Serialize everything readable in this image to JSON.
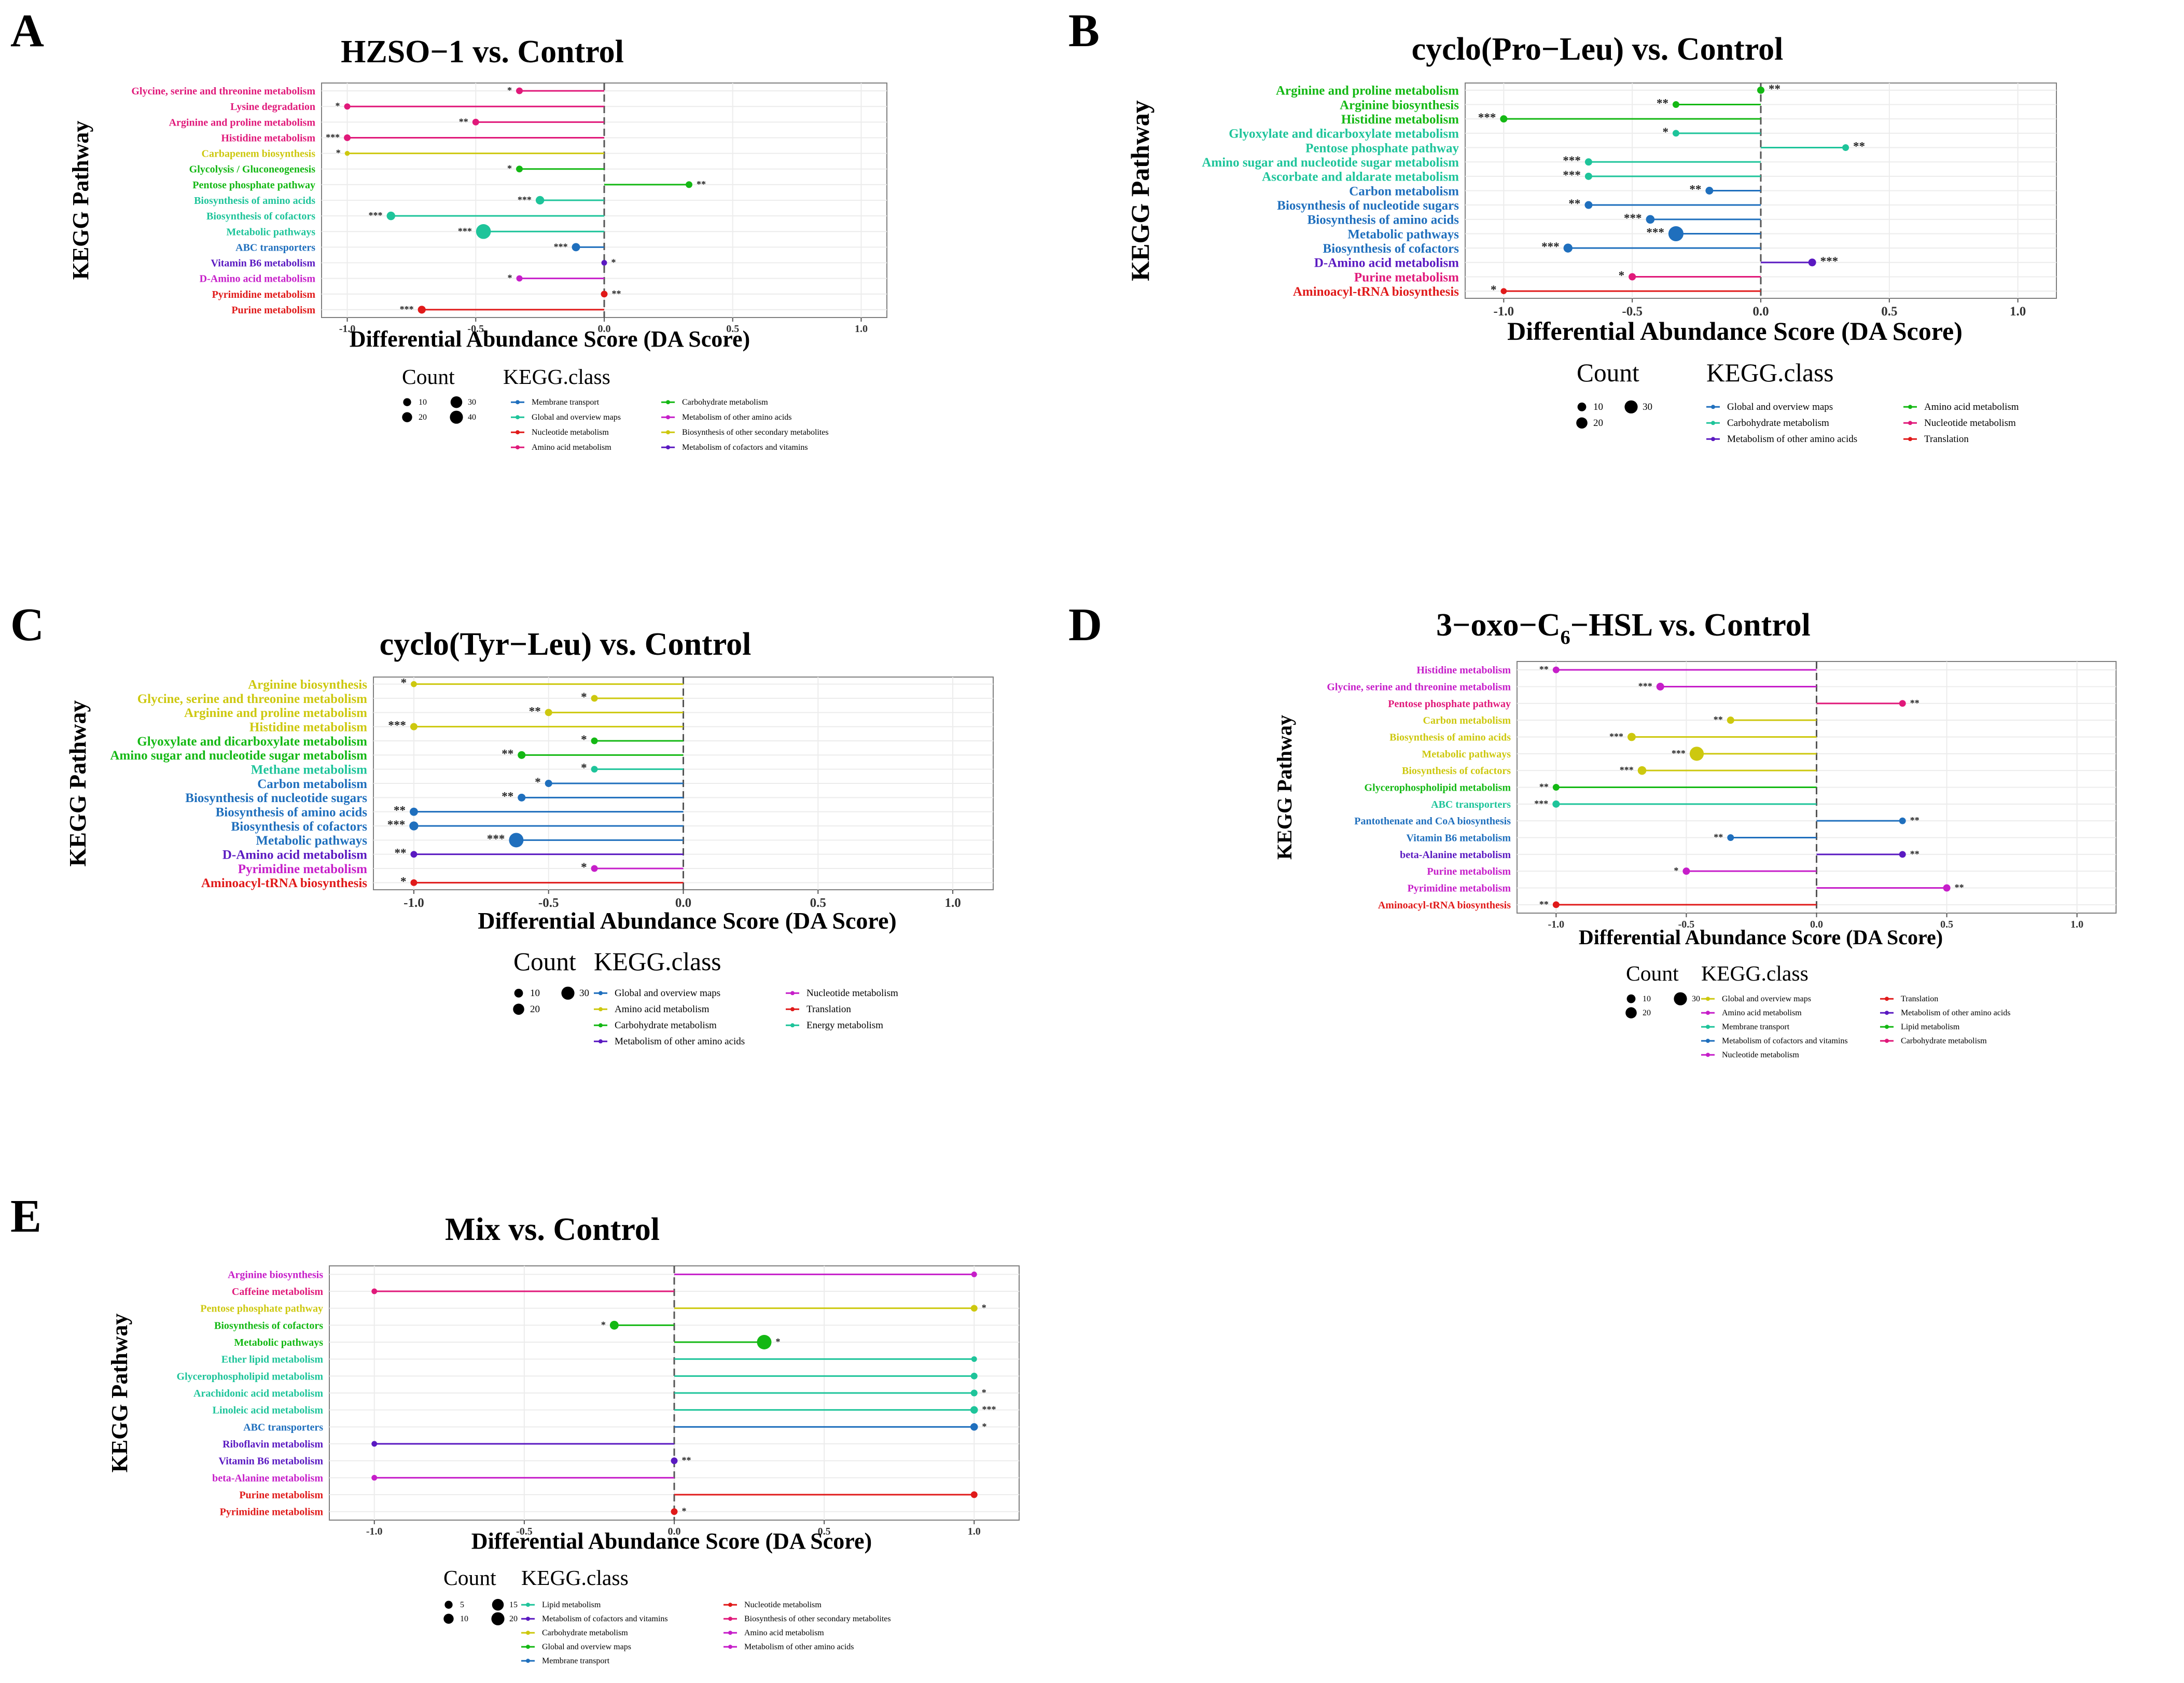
{
  "figure": {
    "panel_letters": [
      "A",
      "B",
      "C",
      "D",
      "E"
    ],
    "axis_title_y": "KEGG Pathway",
    "axis_title_x": "Differential Abundance Score (DA Score)",
    "legend_count_title": "Count",
    "legend_class_title": "KEGG.class"
  },
  "class_colors": {
    "Membrane transport": "#1f6fbd",
    "Global and overview maps": "#1f6fbd",
    "Nucleotide metabolism": "#e0197a",
    "Amino acid metabolism": "#e0197a",
    "Carbohydrate metabolism": "#14b814",
    "Metabolism of other amino acids": "#c61ec9",
    "Biosynthesis of other secondary metabolites": "#cdc80f",
    "Metabolism of cofactors and vitamins": "#5a19c1",
    "Translation": "#e01a1a",
    "Energy metabolism": "#1ec49a",
    "Lipid metabolism": "#1ec49a"
  },
  "chart_data": [
    {
      "panel": "A",
      "type": "lollipop",
      "title": "HZSO−1 vs. Control",
      "xlabel": "Differential Abundance Score (DA Score)",
      "ylabel": "KEGG Pathway",
      "xlim": [
        -1.1,
        1.1
      ],
      "xticks": [
        "-1.0",
        "-0.5",
        "0.0",
        "0.5",
        "1.0"
      ],
      "xtick_values": [
        -1.0,
        -0.5,
        0.0,
        0.5,
        1.0
      ],
      "count_legend": {
        "labels": [
          "10",
          "20",
          "30",
          "40"
        ],
        "values": [
          10,
          20,
          30,
          40
        ]
      },
      "class_legend": [
        "Membrane transport",
        "Global and overview maps",
        "Nucleotide metabolism",
        "Amino acid metabolism",
        "Carbohydrate metabolism",
        "Metabolism of other amino acids",
        "Biosynthesis of other secondary metabolites",
        "Metabolism of cofactors and vitamins"
      ],
      "class_legend_colors": [
        "#1f6fbd",
        "#1ec49a",
        "#e01a1a",
        "#e0197a",
        "#14b814",
        "#c61ec9",
        "#cdc80f",
        "#5a19c1"
      ],
      "pathways": [
        {
          "name": "Glycine, serine and threonine metabolism",
          "value": -0.33,
          "count": 4,
          "sig": "*",
          "color": "#e0197a"
        },
        {
          "name": "Lysine degradation",
          "value": -1.0,
          "count": 3,
          "sig": "*",
          "color": "#e0197a"
        },
        {
          "name": "Arginine and proline metabolism",
          "value": -0.5,
          "count": 4,
          "sig": "**",
          "color": "#e0197a"
        },
        {
          "name": "Histidine metabolism",
          "value": -1.0,
          "count": 4,
          "sig": "***",
          "color": "#e0197a"
        },
        {
          "name": "Carbapenem biosynthesis",
          "value": -1.0,
          "count": 1,
          "sig": "*",
          "color": "#cdc80f"
        },
        {
          "name": "Glycolysis / Gluconeogenesis",
          "value": -0.33,
          "count": 4,
          "sig": "*",
          "color": "#14b814"
        },
        {
          "name": "Pentose phosphate pathway",
          "value": 0.33,
          "count": 4,
          "sig": "**",
          "color": "#14b814"
        },
        {
          "name": "Biosynthesis of amino acids",
          "value": -0.25,
          "count": 9,
          "sig": "***",
          "color": "#1ec49a"
        },
        {
          "name": "Biosynthesis of cofactors",
          "value": -0.83,
          "count": 9,
          "sig": "***",
          "color": "#1ec49a"
        },
        {
          "name": "Metabolic pathways",
          "value": -0.47,
          "count": 42,
          "sig": "***",
          "color": "#1ec49a"
        },
        {
          "name": "ABC transporters",
          "value": -0.11,
          "count": 8,
          "sig": "***",
          "color": "#1f6fbd"
        },
        {
          "name": "Vitamin B6 metabolism",
          "value": 0.0,
          "count": 2,
          "sig": "*",
          "color": "#5a19c1"
        },
        {
          "name": "D-Amino acid metabolism",
          "value": -0.33,
          "count": 3,
          "sig": "*",
          "color": "#c61ec9"
        },
        {
          "name": "Pyrimidine metabolism",
          "value": 0.0,
          "count": 4,
          "sig": "**",
          "color": "#e01a1a"
        },
        {
          "name": "Purine metabolism",
          "value": -0.71,
          "count": 7,
          "sig": "***",
          "color": "#e01a1a"
        }
      ]
    },
    {
      "panel": "B",
      "type": "lollipop",
      "title": "cyclo(Pro−Leu) vs. Control",
      "xlabel": "Differential Abundance Score (DA Score)",
      "ylabel": "KEGG Pathway",
      "xlim": [
        -1.15,
        1.15
      ],
      "xticks": [
        "-1.0",
        "-0.5",
        "0.0",
        "0.5",
        "1.0"
      ],
      "xtick_values": [
        -1.0,
        -0.5,
        0.0,
        0.5,
        1.0
      ],
      "count_legend": {
        "labels": [
          "10",
          "20",
          "30"
        ],
        "values": [
          10,
          20,
          30
        ]
      },
      "class_legend": [
        "Global and overview maps",
        "Carbohydrate metabolism",
        "Metabolism of other amino acids",
        "Amino acid metabolism",
        "Nucleotide metabolism",
        "Translation"
      ],
      "class_legend_colors": [
        "#1f6fbd",
        "#1ec49a",
        "#5a19c1",
        "#14b814",
        "#e0197a",
        "#e01a1a"
      ],
      "pathways": [
        {
          "name": "Arginine and proline metabolism",
          "value": 0.0,
          "count": 4,
          "sig": "**",
          "color": "#14b814"
        },
        {
          "name": "Arginine biosynthesis",
          "value": -0.33,
          "count": 3,
          "sig": "**",
          "color": "#14b814"
        },
        {
          "name": "Histidine metabolism",
          "value": -1.0,
          "count": 4,
          "sig": "***",
          "color": "#14b814"
        },
        {
          "name": "Glyoxylate and dicarboxylate metabolism",
          "value": -0.33,
          "count": 3,
          "sig": "*",
          "color": "#1ec49a"
        },
        {
          "name": "Pentose phosphate pathway",
          "value": 0.33,
          "count": 3,
          "sig": "**",
          "color": "#1ec49a"
        },
        {
          "name": "Amino sugar and nucleotide sugar metabolism",
          "value": -0.67,
          "count": 4,
          "sig": "***",
          "color": "#1ec49a"
        },
        {
          "name": "Ascorbate and aldarate metabolism",
          "value": -0.67,
          "count": 4,
          "sig": "***",
          "color": "#1ec49a"
        },
        {
          "name": "Carbon metabolism",
          "value": -0.2,
          "count": 5,
          "sig": "**",
          "color": "#1f6fbd"
        },
        {
          "name": "Biosynthesis of nucleotide sugars",
          "value": -0.67,
          "count": 5,
          "sig": "**",
          "color": "#1f6fbd"
        },
        {
          "name": "Biosynthesis of amino acids",
          "value": -0.43,
          "count": 7,
          "sig": "***",
          "color": "#1f6fbd"
        },
        {
          "name": "Metabolic pathways",
          "value": -0.33,
          "count": 33,
          "sig": "***",
          "color": "#1f6fbd"
        },
        {
          "name": "Biosynthesis of cofactors",
          "value": -0.75,
          "count": 8,
          "sig": "***",
          "color": "#1f6fbd"
        },
        {
          "name": "D-Amino acid metabolism",
          "value": 0.2,
          "count": 5,
          "sig": "***",
          "color": "#5a19c1"
        },
        {
          "name": "Purine metabolism",
          "value": -0.5,
          "count": 4,
          "sig": "*",
          "color": "#e0197a"
        },
        {
          "name": "Aminoacyl-tRNA biosynthesis",
          "value": -1.0,
          "count": 2,
          "sig": "*",
          "color": "#e01a1a"
        }
      ]
    },
    {
      "panel": "C",
      "type": "lollipop",
      "title": "cyclo(Tyr−Leu) vs. Control",
      "xlabel": "Differential Abundance Score (DA Score)",
      "ylabel": "KEGG Pathway",
      "xlim": [
        -1.15,
        1.15
      ],
      "xticks": [
        "-1.0",
        "-0.5",
        "0.0",
        "0.5",
        "1.0"
      ],
      "xtick_values": [
        -1.0,
        -0.5,
        0.0,
        0.5,
        1.0
      ],
      "count_legend": {
        "labels": [
          "10",
          "20",
          "30"
        ],
        "values": [
          10,
          20,
          30
        ]
      },
      "class_legend": [
        "Global and overview maps",
        "Amino acid metabolism",
        "Carbohydrate metabolism",
        "Metabolism of other amino acids",
        "Nucleotide metabolism",
        "Translation",
        "Energy metabolism"
      ],
      "class_legend_colors": [
        "#1f6fbd",
        "#cdc80f",
        "#14b814",
        "#5a19c1",
        "#c61ec9",
        "#e01a1a",
        "#1ec49a"
      ],
      "pathways": [
        {
          "name": "Arginine biosynthesis",
          "value": -1.0,
          "count": 2,
          "sig": "*",
          "color": "#cdc80f"
        },
        {
          "name": "Glycine, serine and threonine metabolism",
          "value": -0.33,
          "count": 3,
          "sig": "*",
          "color": "#cdc80f"
        },
        {
          "name": "Arginine and proline metabolism",
          "value": -0.5,
          "count": 4,
          "sig": "**",
          "color": "#cdc80f"
        },
        {
          "name": "Histidine metabolism",
          "value": -1.0,
          "count": 4,
          "sig": "***",
          "color": "#cdc80f"
        },
        {
          "name": "Glyoxylate and dicarboxylate metabolism",
          "value": -0.33,
          "count": 3,
          "sig": "*",
          "color": "#14b814"
        },
        {
          "name": "Amino sugar and nucleotide sugar metabolism",
          "value": -0.6,
          "count": 5,
          "sig": "**",
          "color": "#14b814"
        },
        {
          "name": "Methane metabolism",
          "value": -0.33,
          "count": 3,
          "sig": "*",
          "color": "#1ec49a"
        },
        {
          "name": "Carbon metabolism",
          "value": -0.5,
          "count": 4,
          "sig": "*",
          "color": "#1f6fbd"
        },
        {
          "name": "Biosynthesis of nucleotide sugars",
          "value": -0.6,
          "count": 5,
          "sig": "**",
          "color": "#1f6fbd"
        },
        {
          "name": "Biosynthesis of amino acids",
          "value": -1.0,
          "count": 6,
          "sig": "**",
          "color": "#1f6fbd"
        },
        {
          "name": "Biosynthesis of cofactors",
          "value": -1.0,
          "count": 8,
          "sig": "***",
          "color": "#1f6fbd"
        },
        {
          "name": "Metabolic pathways",
          "value": -0.62,
          "count": 30,
          "sig": "***",
          "color": "#1f6fbd"
        },
        {
          "name": "D-Amino acid metabolism",
          "value": -1.0,
          "count": 3,
          "sig": "**",
          "color": "#5a19c1"
        },
        {
          "name": "Pyrimidine metabolism",
          "value": -0.33,
          "count": 3,
          "sig": "*",
          "color": "#c61ec9"
        },
        {
          "name": "Aminoacyl-tRNA biosynthesis",
          "value": -1.0,
          "count": 3,
          "sig": "*",
          "color": "#e01a1a"
        }
      ]
    },
    {
      "panel": "D",
      "type": "lollipop",
      "title": "3−oxo−C6−HSL vs. Control",
      "title_parts": {
        "a": "3−oxo−C",
        "sub": "6",
        "b": "−HSL vs. Control"
      },
      "xlabel": "Differential Abundance Score (DA Score)",
      "ylabel": "KEGG Pathway",
      "xlim": [
        -1.15,
        1.15
      ],
      "xticks": [
        "-1.0",
        "-0.5",
        "0.0",
        "0.5",
        "1.0"
      ],
      "xtick_values": [
        -1.0,
        -0.5,
        0.0,
        0.5,
        1.0
      ],
      "count_legend": {
        "labels": [
          "10",
          "20",
          "30"
        ],
        "values": [
          10,
          20,
          30
        ]
      },
      "class_legend": [
        "Global and overview maps",
        "Amino acid metabolism",
        "Membrane transport",
        "Metabolism of cofactors and vitamins",
        "Nucleotide metabolism",
        "Translation",
        "Metabolism of other amino acids",
        "Lipid metabolism",
        "Carbohydrate metabolism"
      ],
      "class_legend_colors": [
        "#cdc80f",
        "#c61ec9",
        "#1ec49a",
        "#1f6fbd",
        "#c61ec9",
        "#e01a1a",
        "#5a19c1",
        "#14b814",
        "#e0197a"
      ],
      "pathways": [
        {
          "name": "Histidine metabolism",
          "value": -1.0,
          "count": 3,
          "sig": "**",
          "color": "#c61ec9"
        },
        {
          "name": "Glycine, serine and threonine metabolism",
          "value": -0.6,
          "count": 5,
          "sig": "***",
          "color": "#c61ec9"
        },
        {
          "name": "Pentose phosphate pathway",
          "value": 0.33,
          "count": 3,
          "sig": "**",
          "color": "#e0197a"
        },
        {
          "name": "Carbon metabolism",
          "value": -0.33,
          "count": 4,
          "sig": "**",
          "color": "#cdc80f"
        },
        {
          "name": "Biosynthesis of amino acids",
          "value": -0.71,
          "count": 6,
          "sig": "***",
          "color": "#cdc80f"
        },
        {
          "name": "Metabolic pathways",
          "value": -0.46,
          "count": 28,
          "sig": "***",
          "color": "#cdc80f"
        },
        {
          "name": "Biosynthesis of cofactors",
          "value": -0.67,
          "count": 7,
          "sig": "***",
          "color": "#cdc80f"
        },
        {
          "name": "Glycerophospholipid metabolism",
          "value": -1.0,
          "count": 3,
          "sig": "**",
          "color": "#14b814"
        },
        {
          "name": "ABC transporters",
          "value": -1.0,
          "count": 4,
          "sig": "***",
          "color": "#1ec49a"
        },
        {
          "name": "Pantothenate and CoA biosynthesis",
          "value": 0.33,
          "count": 3,
          "sig": "**",
          "color": "#1f6fbd"
        },
        {
          "name": "Vitamin B6 metabolism",
          "value": -0.33,
          "count": 3,
          "sig": "**",
          "color": "#1f6fbd"
        },
        {
          "name": "beta-Alanine metabolism",
          "value": 0.33,
          "count": 3,
          "sig": "**",
          "color": "#5a19c1"
        },
        {
          "name": "Purine metabolism",
          "value": -0.5,
          "count": 4,
          "sig": "*",
          "color": "#c61ec9"
        },
        {
          "name": "Pyrimidine metabolism",
          "value": 0.5,
          "count": 4,
          "sig": "**",
          "color": "#c61ec9"
        },
        {
          "name": "Aminoacyl-tRNA biosynthesis",
          "value": -1.0,
          "count": 3,
          "sig": "**",
          "color": "#e01a1a"
        }
      ]
    },
    {
      "panel": "E",
      "type": "lollipop",
      "title": "Mix vs. Control",
      "xlabel": "Differential Abundance Score (DA Score)",
      "ylabel": "KEGG Pathway",
      "xlim": [
        -1.15,
        1.15
      ],
      "xticks": [
        "-1.0",
        "-0.5",
        "0.0",
        "0.5",
        "1.0"
      ],
      "xtick_values": [
        -1.0,
        -0.5,
        0.0,
        0.5,
        1.0
      ],
      "count_legend": {
        "labels": [
          "5",
          "10",
          "15",
          "20"
        ],
        "values": [
          5,
          10,
          15,
          20
        ]
      },
      "class_legend": [
        "Lipid metabolism",
        "Metabolism of cofactors and vitamins",
        "Carbohydrate metabolism",
        "Global and overview maps",
        "Membrane transport",
        "Nucleotide metabolism",
        "Biosynthesis of other secondary metabolites",
        "Amino acid metabolism",
        "Metabolism of other amino acids"
      ],
      "class_legend_colors": [
        "#1ec49a",
        "#5a19c1",
        "#cdc80f",
        "#14b814",
        "#1f6fbd",
        "#e01a1a",
        "#e0197a",
        "#c61ec9",
        "#c61ec9"
      ],
      "pathways": [
        {
          "name": "Arginine biosynthesis",
          "value": 1.0,
          "count": 1,
          "sig": "",
          "color": "#c61ec9"
        },
        {
          "name": "Caffeine metabolism",
          "value": -1.0,
          "count": 1,
          "sig": "",
          "color": "#e0197a"
        },
        {
          "name": "Pentose phosphate pathway",
          "value": 1.0,
          "count": 2,
          "sig": "*",
          "color": "#cdc80f"
        },
        {
          "name": "Biosynthesis of cofactors",
          "value": -0.2,
          "count": 5,
          "sig": "*",
          "color": "#14b814"
        },
        {
          "name": "Metabolic pathways",
          "value": 0.3,
          "count": 20,
          "sig": "*",
          "color": "#14b814"
        },
        {
          "name": "Ether lipid metabolism",
          "value": 1.0,
          "count": 1,
          "sig": "",
          "color": "#1ec49a"
        },
        {
          "name": "Glycerophospholipid metabolism",
          "value": 1.0,
          "count": 2,
          "sig": "",
          "color": "#1ec49a"
        },
        {
          "name": "Arachidonic acid metabolism",
          "value": 1.0,
          "count": 2,
          "sig": "*",
          "color": "#1ec49a"
        },
        {
          "name": "Linoleic acid metabolism",
          "value": 1.0,
          "count": 3,
          "sig": "***",
          "color": "#1ec49a"
        },
        {
          "name": "ABC transporters",
          "value": 1.0,
          "count": 3,
          "sig": "*",
          "color": "#1f6fbd"
        },
        {
          "name": "Riboflavin metabolism",
          "value": -1.0,
          "count": 1,
          "sig": "",
          "color": "#5a19c1"
        },
        {
          "name": "Vitamin B6 metabolism",
          "value": 0.0,
          "count": 2,
          "sig": "**",
          "color": "#5a19c1"
        },
        {
          "name": "beta-Alanine metabolism",
          "value": -1.0,
          "count": 1,
          "sig": "",
          "color": "#c61ec9"
        },
        {
          "name": "Purine metabolism",
          "value": 1.0,
          "count": 2,
          "sig": "",
          "color": "#e01a1a"
        },
        {
          "name": "Pyrimidine metabolism",
          "value": 0.0,
          "count": 2,
          "sig": "*",
          "color": "#e01a1a"
        }
      ]
    }
  ]
}
